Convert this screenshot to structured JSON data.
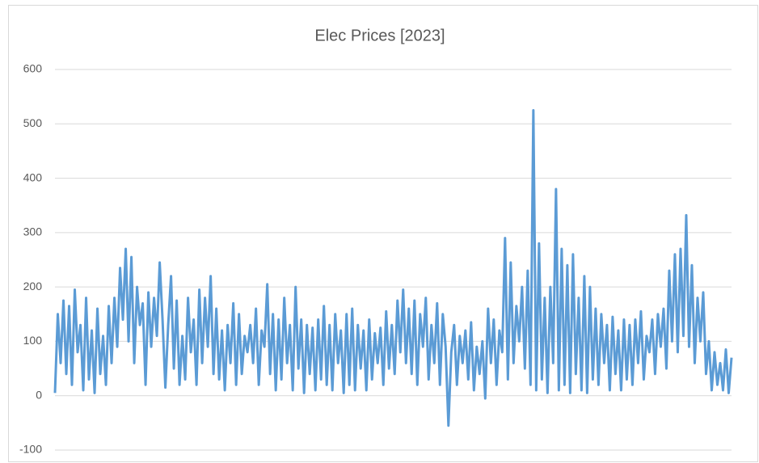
{
  "chart_data": {
    "type": "line",
    "title": "Elec Prices [2023]",
    "series": [
      {
        "name": "Elec Prices",
        "color": "#5b9bd5",
        "values": [
          5,
          150,
          60,
          175,
          40,
          165,
          20,
          195,
          80,
          130,
          10,
          180,
          30,
          120,
          5,
          160,
          40,
          110,
          20,
          165,
          60,
          180,
          90,
          235,
          140,
          270,
          100,
          255,
          60,
          200,
          130,
          170,
          20,
          190,
          90,
          180,
          110,
          245,
          140,
          15,
          130,
          220,
          50,
          175,
          20,
          110,
          30,
          180,
          80,
          140,
          20,
          195,
          60,
          180,
          90,
          220,
          40,
          160,
          30,
          120,
          10,
          130,
          60,
          170,
          20,
          150,
          40,
          110,
          80,
          130,
          60,
          160,
          20,
          120,
          90,
          205,
          40,
          150,
          10,
          140,
          30,
          180,
          60,
          130,
          10,
          200,
          50,
          140,
          5,
          130,
          40,
          125,
          10,
          140,
          30,
          165,
          20,
          130,
          10,
          150,
          60,
          120,
          5,
          150,
          20,
          160,
          10,
          130,
          50,
          120,
          10,
          140,
          30,
          115,
          60,
          125,
          20,
          155,
          50,
          130,
          40,
          175,
          80,
          195,
          60,
          160,
          40,
          175,
          20,
          150,
          90,
          180,
          30,
          130,
          60,
          170,
          20,
          150,
          90,
          -55,
          80,
          130,
          20,
          110,
          60,
          120,
          30,
          135,
          10,
          90,
          40,
          100,
          -5,
          160,
          60,
          140,
          20,
          120,
          80,
          290,
          30,
          245,
          60,
          165,
          100,
          200,
          50,
          230,
          20,
          525,
          10,
          280,
          30,
          180,
          5,
          200,
          60,
          380,
          10,
          270,
          20,
          240,
          5,
          260,
          40,
          180,
          10,
          220,
          5,
          200,
          30,
          160,
          20,
          150,
          60,
          130,
          10,
          145,
          40,
          120,
          10,
          140,
          30,
          130,
          20,
          140,
          60,
          155,
          30,
          110,
          80,
          140,
          40,
          150,
          90,
          160,
          50,
          230,
          100,
          260,
          80,
          270,
          110,
          332,
          90,
          240,
          60,
          180,
          100,
          190,
          40,
          100,
          10,
          80,
          20,
          60,
          10,
          85,
          5,
          70
        ]
      }
    ],
    "ylim": [
      -100,
      600
    ],
    "yticks": [
      -100,
      0,
      100,
      200,
      300,
      400,
      500,
      600
    ],
    "grid": true
  }
}
